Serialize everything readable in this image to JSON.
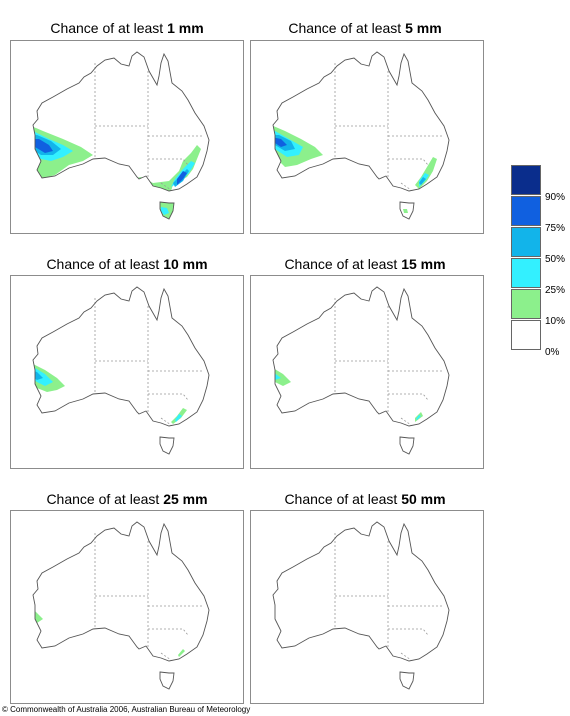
{
  "panels": [
    {
      "title_prefix": "Chance of at least ",
      "amount": "1 mm",
      "level": 1
    },
    {
      "title_prefix": "Chance of at least ",
      "amount": "5 mm",
      "level": 2
    },
    {
      "title_prefix": "Chance of at least ",
      "amount": "10 mm",
      "level": 3
    },
    {
      "title_prefix": "Chance of at least ",
      "amount": "15 mm",
      "level": 4
    },
    {
      "title_prefix": "Chance of at least ",
      "amount": "25 mm",
      "level": 5
    },
    {
      "title_prefix": "Chance of at least ",
      "amount": "50 mm",
      "level": 6
    }
  ],
  "legend": {
    "labels": [
      "90%",
      "75%",
      "50%",
      "25%",
      "10%",
      "0%"
    ],
    "colors": [
      "#0a2d8c",
      "#1060e0",
      "#12b4ea",
      "#33f0ff",
      "#8cf08c",
      "#ffffff"
    ]
  },
  "map_colors": {
    "outline": "#555555",
    "borders": "#999999",
    "green": "#8cf08c",
    "cyan": "#33f0ff",
    "mid": "#12b4ea",
    "blue": "#1060e0",
    "dark": "#0a2d8c"
  },
  "footer": "© Commonwealth of Australia 2006, Australian Bureau of Meteorology"
}
